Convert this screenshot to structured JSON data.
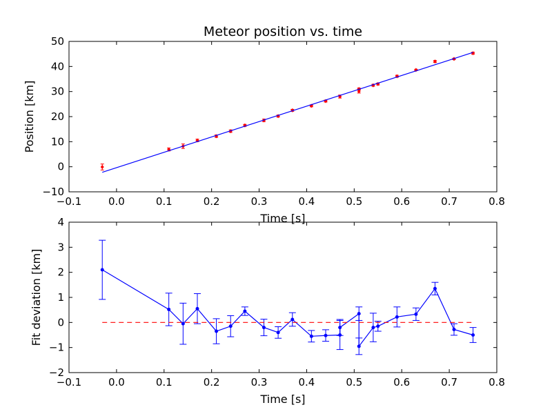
{
  "chart_data": [
    {
      "type": "scatter",
      "title": "Meteor position vs. time",
      "xlabel": "Time [s]",
      "ylabel": "Position [km]",
      "xlim": [
        -0.1,
        0.8
      ],
      "ylim": [
        -10,
        50
      ],
      "xticks": [
        "−0.1",
        "0.0",
        "0.1",
        "0.2",
        "0.3",
        "0.4",
        "0.5",
        "0.6",
        "0.7",
        "0.8"
      ],
      "yticks": [
        "−10",
        "0",
        "10",
        "20",
        "30",
        "40",
        "50"
      ],
      "grid": false,
      "colors": {
        "points": "#ff0000",
        "fit_line": "#0000ff"
      },
      "series": [
        {
          "kind": "points",
          "x": [
            -0.03,
            0.11,
            0.14,
            0.17,
            0.21,
            0.24,
            0.27,
            0.31,
            0.34,
            0.37,
            0.41,
            0.44,
            0.47,
            0.51,
            0.51,
            0.54,
            0.55,
            0.59,
            0.63,
            0.67,
            0.71,
            0.75
          ],
          "y": [
            -0.1,
            6.9,
            8.2,
            10.5,
            12.2,
            14.2,
            16.5,
            18.5,
            20.2,
            22.5,
            24.3,
            26.2,
            28.0,
            31.0,
            30.1,
            32.5,
            33.0,
            36.1,
            38.6,
            42.0,
            43.0,
            45.3
          ],
          "yerr": [
            1.2,
            0.6,
            0.9,
            0.5,
            0.5,
            0.5,
            0.4,
            0.5,
            0.4,
            0.4,
            0.4,
            0.4,
            0.6,
            0.4,
            0.7,
            0.4,
            0.4,
            0.4,
            0.3,
            0.4,
            0.3,
            0.4
          ]
        },
        {
          "kind": "fit_line",
          "x": [
            -0.03,
            0.75
          ],
          "y": [
            -2.2,
            45.6
          ]
        }
      ]
    },
    {
      "type": "line",
      "xlabel": "Time [s]",
      "ylabel": "Fit deviation [km]",
      "xlim": [
        -0.1,
        0.8
      ],
      "ylim": [
        -2,
        4
      ],
      "xticks": [
        "−0.1",
        "0.0",
        "0.1",
        "0.2",
        "0.3",
        "0.4",
        "0.5",
        "0.6",
        "0.7",
        "0.8"
      ],
      "yticks": [
        "−2",
        "−1",
        "0",
        "1",
        "2",
        "3",
        "4"
      ],
      "grid": false,
      "colors": {
        "line": "#0000ff",
        "zero_line": "#ff0000"
      },
      "series": [
        {
          "kind": "errorline",
          "x": [
            -0.03,
            0.11,
            0.14,
            0.17,
            0.21,
            0.24,
            0.27,
            0.31,
            0.34,
            0.37,
            0.41,
            0.44,
            0.47,
            0.47,
            0.51,
            0.51,
            0.54,
            0.55,
            0.59,
            0.63,
            0.67,
            0.71,
            0.75
          ],
          "y": [
            2.1,
            0.52,
            -0.05,
            0.55,
            -0.35,
            -0.15,
            0.45,
            -0.2,
            -0.4,
            0.12,
            -0.55,
            -0.52,
            -0.5,
            -0.2,
            0.35,
            -0.95,
            -0.2,
            -0.15,
            0.22,
            0.33,
            1.35,
            -0.28,
            -0.5
          ],
          "yerr": [
            1.18,
            0.65,
            0.82,
            0.6,
            0.5,
            0.42,
            0.17,
            0.33,
            0.23,
            0.27,
            0.23,
            0.23,
            0.58,
            0.32,
            0.27,
            0.33,
            0.57,
            0.2,
            0.4,
            0.25,
            0.25,
            0.23,
            0.3
          ]
        },
        {
          "kind": "zero_line",
          "x": [
            -0.03,
            0.75
          ],
          "y": [
            0,
            0
          ]
        }
      ]
    }
  ]
}
